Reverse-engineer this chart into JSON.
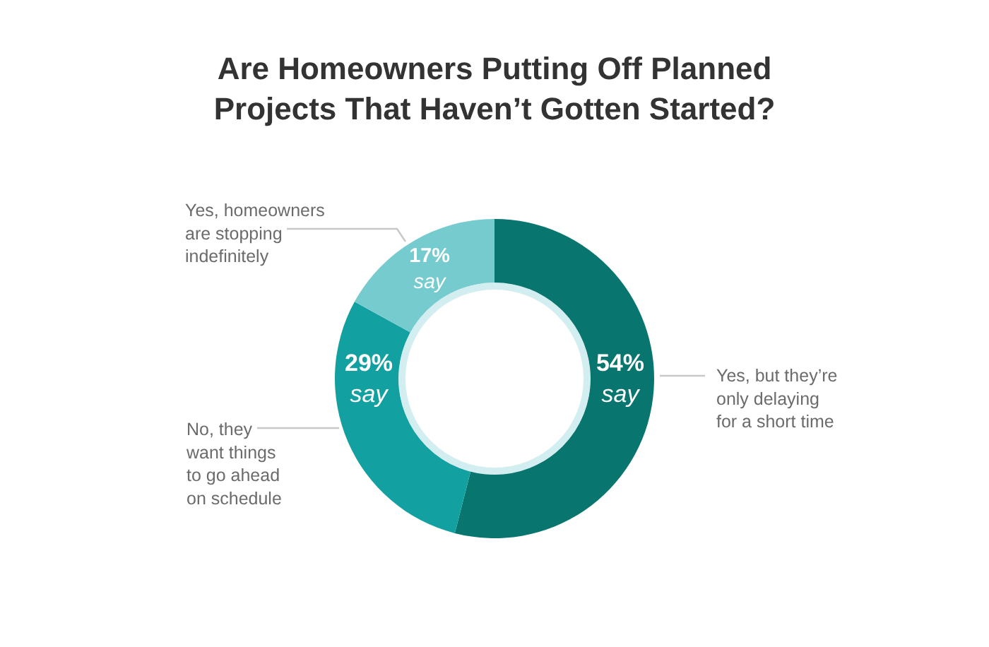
{
  "chart_data": {
    "type": "donut",
    "title": "Are Homeowners Putting Off Planned\nProjects That Haven’t Gotten Started?",
    "categories": [
      "Yes, but they’re\nonly delaying\nfor a short time",
      "No, they\nwant things\nto go ahead\non schedule",
      "Yes, homeowners\nare stopping\nindefinitely"
    ],
    "values": [
      54,
      29,
      17
    ],
    "colors": [
      "#08756f",
      "#13a0a0",
      "#76cbcf"
    ],
    "value_labels": [
      "54%\nsay",
      "29%\nsay",
      "17%\nsay"
    ]
  }
}
